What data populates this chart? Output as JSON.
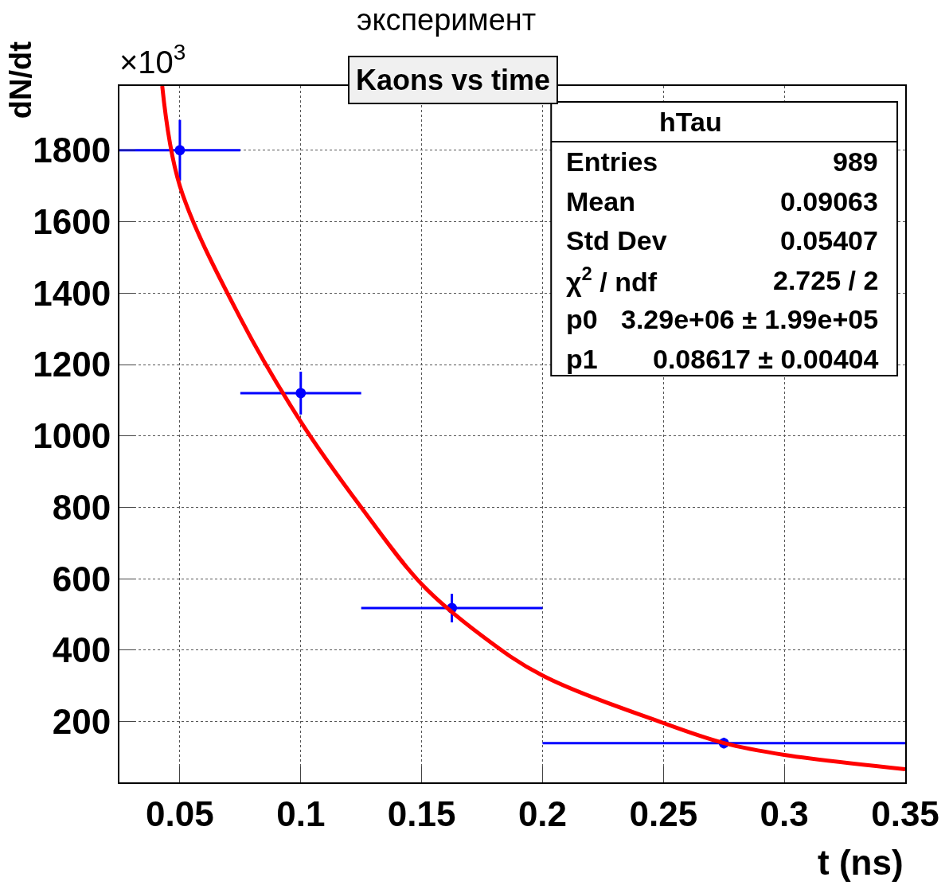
{
  "chart_data": {
    "type": "scatter",
    "title": "Kaons vs time",
    "xlabel": "t (ns)",
    "ylabel": "dN/dt",
    "annotations": [
      "эксперимент",
      "×10$^{3}$",
      "hTau",
      "Entries",
      "989",
      "Mean",
      "0.09063",
      "Std Dev",
      "0.05407",
      "χ$^{2}$ / ndf",
      "2.725 / 2",
      "p0",
      "3.29e+06 ± 1.99e+05",
      "p1",
      "0.08617 ± 0.00404"
    ],
    "xlim": [
      0.025,
      0.35
    ],
    "xticks": [
      0.05,
      0.1,
      0.15,
      0.2,
      0.25,
      0.3,
      0.35
    ],
    "ylim": [
      30,
      1980
    ],
    "yticks": [
      200,
      400,
      600,
      800,
      1000,
      1200,
      1400,
      1600,
      1800
    ],
    "grid": true,
    "legend": false,
    "marker": "circle",
    "series": [
      {
        "color": "#0000ff",
        "x": [
          0.05,
          0.1,
          0.1625,
          0.275
        ],
        "values": [
          1800,
          1120,
          518,
          140
        ],
        "errors": [
          85,
          60,
          40,
          15
        ],
        "xerrors": [
          0.025,
          0.025,
          0.0375,
          0.075
        ]
      },
      {
        "type": "line",
        "marker": "none",
        "color": "#ff0000",
        "line_style": "solid",
        "x": [
          0.0427,
          0.05,
          0.075,
          0.1,
          0.125,
          0.15,
          0.175,
          0.2,
          0.25,
          0.275,
          0.3,
          0.35
        ],
        "values": [
          1980,
          1700,
          1330,
          1040,
          800,
          585,
          440,
          329,
          196,
          140,
          107,
          67
        ]
      }
    ]
  }
}
